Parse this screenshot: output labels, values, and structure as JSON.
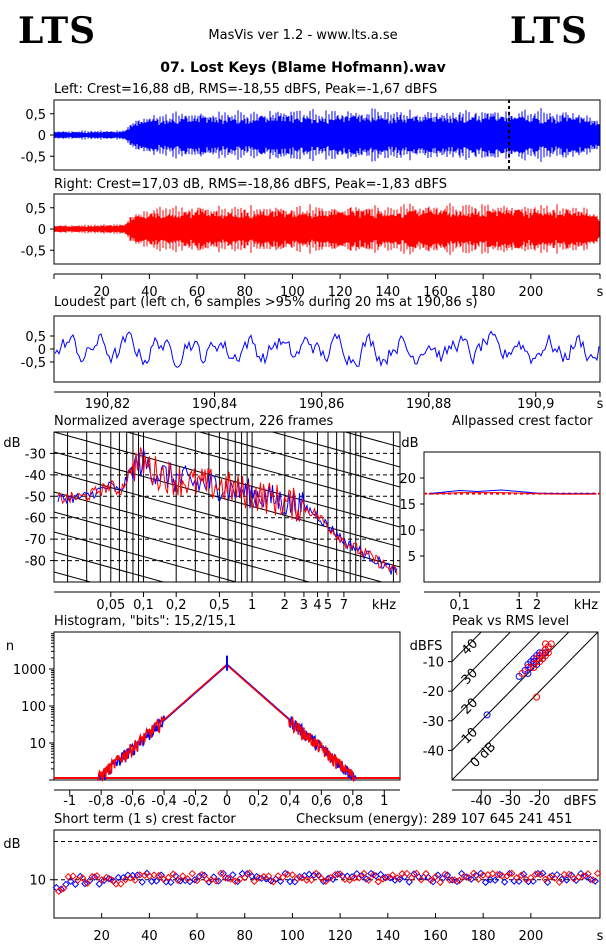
{
  "header": {
    "logo_left": "LTS",
    "logo_right": "LTS",
    "app_title": "MasVis ver 1.2 - www.lts.a.se",
    "file_name": "07. Lost Keys (Blame Hofmann).wav"
  },
  "colors": {
    "left": "#0000ff",
    "right": "#ff0000",
    "grid": "#000000"
  },
  "chart_data": [
    {
      "id": "left-waveform",
      "type": "area",
      "title": "Left: Crest=16,88 dB, RMS=-18,55 dBFS, Peak=-1,67 dBFS",
      "y_ticks": [
        "0,5",
        "0",
        "-0,5"
      ],
      "ylim": [
        -1,
        1
      ],
      "xlim": [
        0,
        229
      ],
      "envelope_x": [
        0,
        10,
        20,
        30,
        32,
        40,
        60,
        80,
        100,
        120,
        140,
        160,
        180,
        200,
        220,
        229
      ],
      "envelope_amp": [
        0.1,
        0.11,
        0.12,
        0.13,
        0.35,
        0.55,
        0.62,
        0.62,
        0.64,
        0.65,
        0.65,
        0.65,
        0.66,
        0.66,
        0.63,
        0.4
      ],
      "marker_x": 190.86
    },
    {
      "id": "right-waveform",
      "type": "area",
      "title": "Right: Crest=17,03 dB, RMS=-18,86 dBFS, Peak=-1,83 dBFS",
      "y_ticks": [
        "0,5",
        "0",
        "-0,5"
      ],
      "ylim": [
        -1,
        1
      ],
      "xlim": [
        0,
        229
      ],
      "x_ticks": [
        "20",
        "40",
        "60",
        "80",
        "100",
        "120",
        "140",
        "160",
        "180",
        "200",
        "s"
      ],
      "envelope_x": [
        0,
        10,
        20,
        30,
        32,
        40,
        60,
        80,
        100,
        120,
        140,
        160,
        180,
        200,
        220,
        229
      ],
      "envelope_amp": [
        0.1,
        0.11,
        0.12,
        0.13,
        0.38,
        0.55,
        0.6,
        0.6,
        0.62,
        0.62,
        0.63,
        0.64,
        0.64,
        0.66,
        0.62,
        0.4
      ]
    },
    {
      "id": "loudest-part",
      "type": "line",
      "title": "Loudest part (left  ch, 6 samples >95% during 20 ms at 190,86 s)",
      "y_ticks": [
        "0,5",
        "0",
        "-0,5"
      ],
      "ylim": [
        -1,
        1
      ],
      "xlim": [
        190.81,
        190.912
      ],
      "x_ticks": [
        "190,82",
        "190,84",
        "190,86",
        "190,88",
        "190,9",
        "s"
      ]
    },
    {
      "id": "avg-spectrum",
      "type": "line",
      "title": "Normalized average spectrum, 226 frames",
      "ylabel": "dB",
      "xlabel": "kHz",
      "y_ticks": [
        "-30",
        "-40",
        "-50",
        "-60",
        "-70",
        "-80"
      ],
      "ylim": [
        -90,
        -20
      ],
      "x_ticks": [
        "0,05",
        "0,1",
        "0,2",
        "0,5",
        "1",
        "2",
        "3",
        "4",
        "5",
        "7",
        "kHz"
      ],
      "x_khz": [
        0.02,
        0.03,
        0.04,
        0.05,
        0.06,
        0.08,
        0.1,
        0.12,
        0.15,
        0.2,
        0.3,
        0.5,
        0.7,
        1,
        1.5,
        2,
        3,
        4,
        5,
        7,
        10,
        14,
        20
      ],
      "y_db": [
        -51,
        -50,
        -47,
        -45,
        -48,
        -36,
        -34,
        -38,
        -40,
        -42,
        -44,
        -45,
        -47,
        -49,
        -51,
        -53,
        -55,
        -59,
        -64,
        -71,
        -76,
        -80,
        -85
      ]
    },
    {
      "id": "allpassed-crest",
      "type": "line",
      "title": "Allpassed crest factor",
      "ylabel": "dB",
      "xlabel": "kHz",
      "y_ticks": [
        "20",
        "15",
        "10",
        "5"
      ],
      "ylim": [
        0,
        25
      ],
      "x_ticks": [
        "0,1",
        "1",
        "2",
        "kHz"
      ],
      "reference_db": 17,
      "series": [
        {
          "x_khz": [
            0.03,
            0.1,
            0.2,
            0.5,
            1,
            2,
            5,
            20
          ],
          "y_db": [
            17,
            17.6,
            17.4,
            17.7,
            17.4,
            17.1,
            17,
            17
          ]
        },
        {
          "x_khz": [
            0.03,
            0.1,
            0.2,
            0.5,
            1,
            2,
            5,
            20
          ],
          "y_db": [
            16.9,
            17.2,
            17.2,
            17.2,
            17.1,
            17,
            16.9,
            16.9
          ]
        }
      ]
    },
    {
      "id": "histogram",
      "type": "line",
      "title": "Histogram, \"bits\": 15,2/15,1",
      "ylabel": "n",
      "y_ticks": [
        "1000",
        "100",
        "10"
      ],
      "ylim": [
        1,
        10000
      ],
      "x_ticks": [
        "-1",
        "-0,8",
        "-0,6",
        "-0,4",
        "-0,2",
        "0",
        "0,2",
        "0,4",
        "0,6",
        "0,8",
        "1"
      ],
      "xlim": [
        -1.1,
        1.1
      ],
      "peak_count": 1300,
      "support": [
        -0.82,
        0.82
      ]
    },
    {
      "id": "peak-vs-rms",
      "type": "scatter",
      "title": "Peak vs RMS level",
      "ylabel": "dBFS",
      "xlabel": "dBFS",
      "y_ticks": [
        "-10",
        "-20",
        "-30",
        "-40"
      ],
      "ylim": [
        -50,
        0
      ],
      "x_ticks": [
        "-40",
        "-30",
        "-20",
        "dBFS"
      ],
      "xlim": [
        -50,
        0
      ],
      "crest_labels": [
        "40",
        "30",
        "20",
        "10",
        "0 dB"
      ],
      "series": [
        {
          "rms": [
            -27,
            -25,
            -24,
            -23,
            -22,
            -21,
            -20,
            -19,
            -18,
            -17,
            -23,
            -21,
            -19,
            -20,
            -22,
            -24,
            -18,
            -38
          ],
          "peak": [
            -15,
            -13,
            -11,
            -10,
            -9,
            -8,
            -8,
            -7,
            -6,
            -5,
            -12,
            -11,
            -9,
            -7,
            -10,
            -14,
            -7,
            -28
          ]
        },
        {
          "rms": [
            -26,
            -24,
            -22,
            -21,
            -20,
            -19,
            -18,
            -17,
            -16,
            -20,
            -18,
            -22,
            -19,
            -17,
            -21,
            -18
          ],
          "peak": [
            -14,
            -12,
            -11,
            -9,
            -8,
            -7,
            -6,
            -5,
            -4,
            -10,
            -8,
            -12,
            -9,
            -7,
            -22,
            -4
          ]
        }
      ]
    },
    {
      "id": "short-term-crest",
      "type": "scatter",
      "title": "Short term (1 s) crest factor",
      "checksum_label": "Checksum (energy):  289 107 645 241 451",
      "ylabel": "dB",
      "y_ticks": [
        "10"
      ],
      "ylim": [
        0,
        30
      ],
      "xlim": [
        0,
        229
      ],
      "x_ticks": [
        "20",
        "40",
        "60",
        "80",
        "100",
        "120",
        "140",
        "160",
        "180",
        "200",
        "s"
      ],
      "dashed_db": [
        10,
        20
      ]
    }
  ]
}
